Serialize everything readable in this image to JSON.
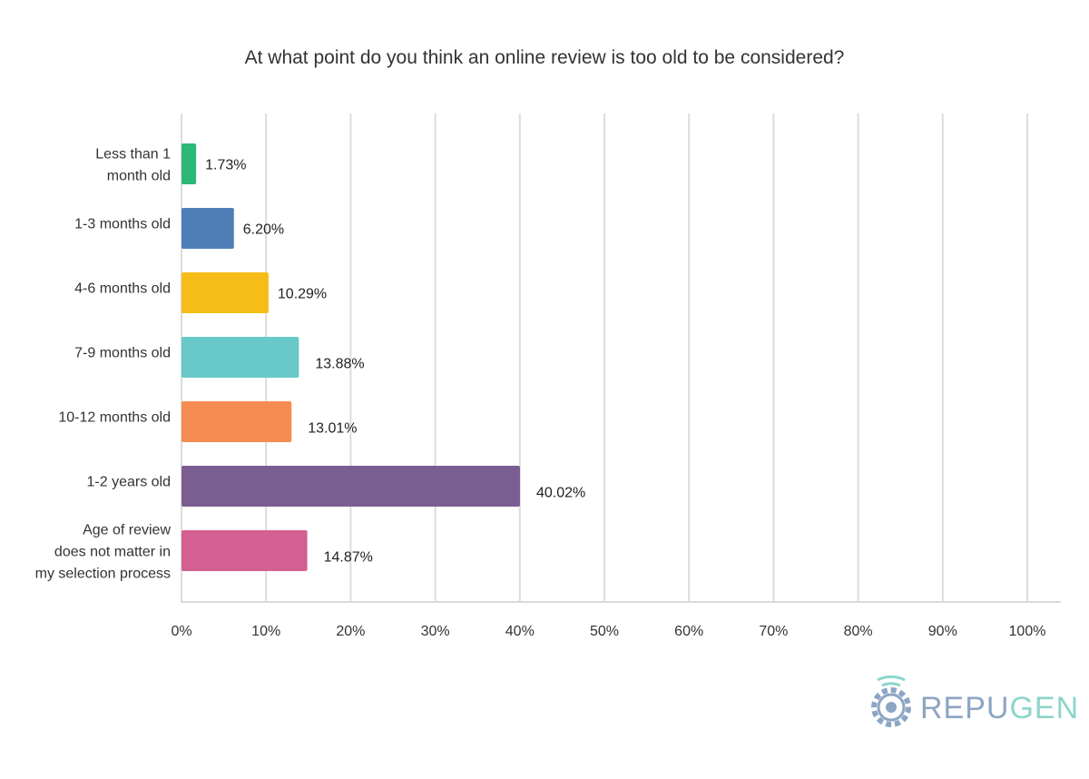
{
  "chart_data": {
    "type": "bar",
    "orientation": "horizontal",
    "title": "At what point do you think an online review is too old to be considered?",
    "categories": [
      [
        "Less than 1",
        "month old"
      ],
      [
        "1-3 months old"
      ],
      [
        "4-6 months old"
      ],
      [
        "7-9 months old"
      ],
      [
        "10-12 months old"
      ],
      [
        "1-2 years old"
      ],
      [
        "Age of review",
        "does not matter in",
        "my selection process"
      ]
    ],
    "values": [
      1.73,
      6.2,
      10.29,
      13.88,
      13.01,
      40.02,
      14.87
    ],
    "value_labels": [
      "1.73%",
      "6.20%",
      "10.29%",
      "13.88%",
      "13.01%",
      "40.02%",
      "14.87%"
    ],
    "colors": [
      "#2db87a",
      "#4f7eb7",
      "#f6bd18",
      "#69c8c9",
      "#f58b51",
      "#7b5e91",
      "#d45f91"
    ],
    "xlim": [
      0,
      100
    ],
    "xticks": [
      0,
      10,
      20,
      30,
      40,
      50,
      60,
      70,
      80,
      90,
      100
    ],
    "xtick_labels": [
      "0%",
      "10%",
      "20%",
      "30%",
      "40%",
      "50%",
      "60%",
      "70%",
      "80%",
      "90%",
      "100%"
    ],
    "grid": true,
    "legend": "none"
  },
  "logo": {
    "text_a": "REPU",
    "text_b": "GEN",
    "color_a": "#8da5c4",
    "color_b": "#8dd5cc"
  }
}
